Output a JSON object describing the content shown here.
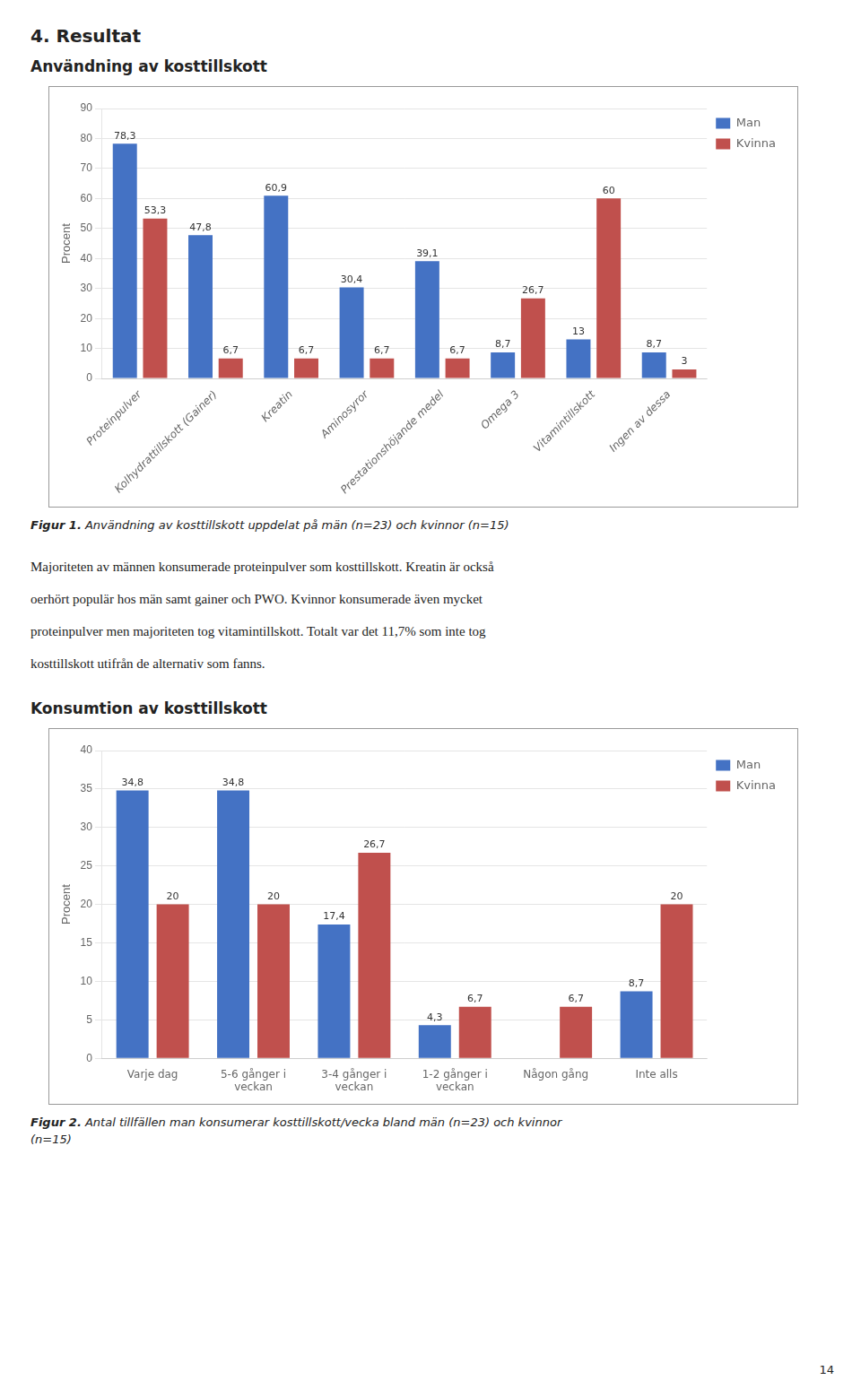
{
  "chart_data": [
    {
      "type": "bar",
      "title": "Användning av kosttillskott",
      "subtitle": "Figur 1. Användning av kosttillskott uppdelat på män (n=23) och kvinnor (n=15)",
      "annotations": [
        "4. Resultat",
        "Majoriteten av männen konsumerade proteinpulver som kosttillskott. Kreatin är också",
        "oerhört populär hos män samt gainer och PWO. Kvinnor konsumerade även mycket",
        "proteinpulver men majoriteten tog vitamintillskott. Totalt var det 11,7% som inte tog",
        "kosttillskott utifrån de alternativ som fanns."
      ],
      "categories": [
        "Proteinpulver",
        "Kolhydrattillskott (Gainer)",
        "Kreatin",
        "Aminosyror",
        "Prestationshöjande medel",
        "Omega 3",
        "Vitamintillskott",
        "Ingen av dessa"
      ],
      "series": [
        {
          "name": "Man",
          "color": "#4472C4",
          "values": [
            78.3,
            47.8,
            60.9,
            30.4,
            39.1,
            8.7,
            13.0,
            8.7
          ],
          "value_labels": [
            "78,3",
            "47,8",
            "60,9",
            "30,4",
            "39,1",
            "8,7",
            "13",
            "8,7"
          ]
        },
        {
          "name": "Kvinna",
          "color": "#C0504D",
          "values": [
            53.3,
            6.7,
            6.7,
            6.7,
            6.7,
            26.7,
            60.0,
            3.0
          ],
          "value_labels": [
            "53,3",
            "6,7",
            "6,7",
            "6,7",
            "6,7",
            "26,7",
            "60",
            "3"
          ]
        }
      ],
      "ylabel": "Procent",
      "ylim": [
        0,
        90
      ],
      "yticks": [
        0,
        10,
        20,
        30,
        40,
        50,
        60,
        70,
        80,
        90
      ],
      "grid": true,
      "legend": "upper right",
      "data_labels": true
    },
    {
      "type": "bar",
      "title": "Konsumtion av kosttillskott",
      "subtitle": "Figur 2. Antal tillfällen man konsumerar kosttillskott/vecka bland män (n=23) och kvinnor",
      "annotations": [
        "(n=15)",
        "14"
      ],
      "categories": [
        "Varje dag",
        "5-6 gånger i\nveckan",
        "3-4 gånger i\nveckan",
        "1-2 gånger i\nveckan",
        "Någon gång",
        "Inte alls"
      ],
      "series": [
        {
          "name": "Man",
          "color": "#4472C4",
          "values": [
            34.8,
            34.8,
            17.4,
            4.3,
            0.0,
            8.7
          ],
          "value_labels": [
            "34,8",
            "34,8",
            "17,4",
            "4,3",
            null,
            "8,7"
          ]
        },
        {
          "name": "Kvinna",
          "color": "#C0504D",
          "values": [
            20.0,
            20.0,
            26.7,
            6.7,
            6.7,
            20.0
          ],
          "value_labels": [
            "20",
            "20",
            "26,7",
            "6,7",
            "6,7",
            "20"
          ]
        }
      ],
      "ylabel": "Procent",
      "ylim": [
        0,
        40
      ],
      "yticks": [
        0,
        5,
        10,
        15,
        20,
        25,
        30,
        35,
        40
      ],
      "grid": true,
      "legend": "upper right",
      "data_labels": true
    }
  ]
}
